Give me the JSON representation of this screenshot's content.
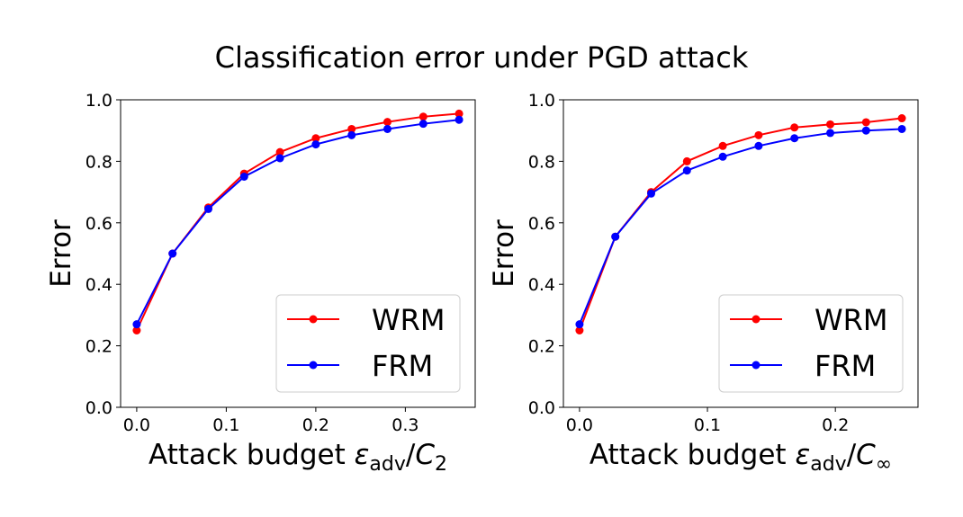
{
  "figure_title": "Classification error under PGD attack",
  "chart_data": [
    {
      "type": "line",
      "ylabel": "Error",
      "xlabel_prefix": "Attack budget ",
      "xlabel_eps": "ε",
      "xlabel_sub": "adv",
      "xlabel_slash": "/",
      "xlabel_c": "C",
      "xlabel_csub": "2",
      "xlim": [
        -0.018,
        0.378
      ],
      "ylim": [
        0.0,
        1.0
      ],
      "xticks": [
        0.0,
        0.1,
        0.2,
        0.3
      ],
      "xtick_labels": [
        "0.0",
        "0.1",
        "0.2",
        "0.3"
      ],
      "yticks": [
        0.0,
        0.2,
        0.4,
        0.6,
        0.8,
        1.0
      ],
      "ytick_labels": [
        "0.0",
        "0.2",
        "0.4",
        "0.6",
        "0.8",
        "1.0"
      ],
      "legend_position": "lower-right",
      "series": [
        {
          "name": "WRM",
          "color": "#ff0000",
          "x": [
            0.0,
            0.04,
            0.08,
            0.12,
            0.16,
            0.2,
            0.24,
            0.28,
            0.32,
            0.36
          ],
          "values": [
            0.25,
            0.5,
            0.65,
            0.76,
            0.83,
            0.875,
            0.905,
            0.928,
            0.945,
            0.955
          ]
        },
        {
          "name": "FRM",
          "color": "#0000ff",
          "x": [
            0.0,
            0.04,
            0.08,
            0.12,
            0.16,
            0.2,
            0.24,
            0.28,
            0.32,
            0.36
          ],
          "values": [
            0.27,
            0.5,
            0.645,
            0.75,
            0.81,
            0.855,
            0.885,
            0.905,
            0.922,
            0.935
          ]
        }
      ]
    },
    {
      "type": "line",
      "ylabel": "Error",
      "xlabel_prefix": "Attack budget ",
      "xlabel_eps": "ε",
      "xlabel_sub": "adv",
      "xlabel_slash": "/",
      "xlabel_c": "C",
      "xlabel_csub": "∞",
      "xlim": [
        -0.0126,
        0.2646
      ],
      "ylim": [
        0.0,
        1.0
      ],
      "xticks": [
        0.0,
        0.1,
        0.2
      ],
      "xtick_labels": [
        "0.0",
        "0.1",
        "0.2"
      ],
      "yticks": [
        0.0,
        0.2,
        0.4,
        0.6,
        0.8,
        1.0
      ],
      "ytick_labels": [
        "0.0",
        "0.2",
        "0.4",
        "0.6",
        "0.8",
        "1.0"
      ],
      "legend_position": "lower-right",
      "series": [
        {
          "name": "WRM",
          "color": "#ff0000",
          "x": [
            0.0,
            0.028,
            0.056,
            0.084,
            0.112,
            0.14,
            0.168,
            0.196,
            0.224,
            0.252
          ],
          "values": [
            0.25,
            0.555,
            0.7,
            0.8,
            0.85,
            0.885,
            0.91,
            0.92,
            0.927,
            0.94
          ]
        },
        {
          "name": "FRM",
          "color": "#0000ff",
          "x": [
            0.0,
            0.028,
            0.056,
            0.084,
            0.112,
            0.14,
            0.168,
            0.196,
            0.224,
            0.252
          ],
          "values": [
            0.27,
            0.555,
            0.695,
            0.77,
            0.815,
            0.85,
            0.875,
            0.892,
            0.9,
            0.905
          ]
        }
      ]
    }
  ]
}
